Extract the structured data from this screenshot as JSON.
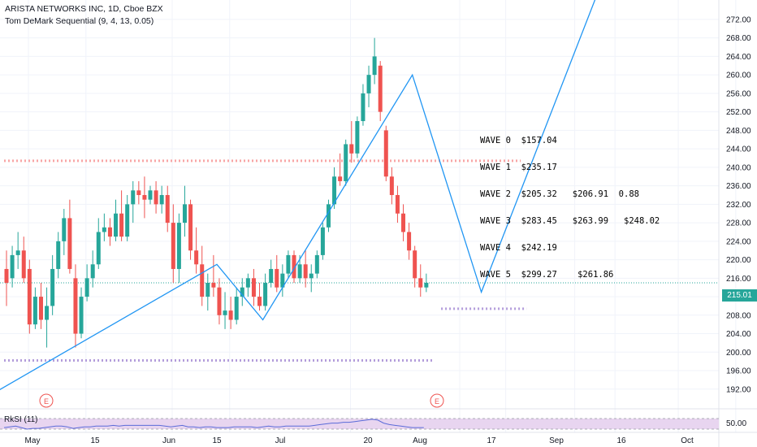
{
  "header": {
    "symbol_line": "ARISTA NETWORKS INC, 1D, Cboe BZX",
    "indicator_line": "Tom DeMark Sequential (9, 4, 13, 0.05)"
  },
  "waves": [
    "WAVE 0  $157.04",
    "WAVE 1  $235.17",
    "WAVE 2  $205.32   $206.91  0.88",
    "WAVE 3  $283.45   $263.99   $248.02",
    "WAVE 4  $242.19",
    "WAVE 5  $299.27    $261.86"
  ],
  "current_price": "215.01",
  "rsi_label": "RkSI (11)",
  "rsi_tick": "50.00",
  "earnings_marker": "E",
  "colors": {
    "up": "#26a69a",
    "down": "#ef5350",
    "wave_line": "#2196f3",
    "level_pink": "#f8a5a5",
    "level_purple": "#b39ddb",
    "rsi_fill": "#e8d5f0",
    "rsi_line": "#5b6bd8"
  },
  "chart_data": {
    "type": "candlestick",
    "title": "ARISTA NETWORKS INC, 1D, Cboe BZX",
    "y_ticks": [
      192,
      196,
      200,
      204,
      208,
      212,
      216,
      220,
      224,
      228,
      232,
      236,
      240,
      244,
      248,
      252,
      256,
      260,
      264,
      268,
      272
    ],
    "ylim": [
      189.5,
      274.8
    ],
    "x_ticks": [
      "May",
      "15",
      "Jun",
      "15",
      "Jul",
      "20",
      "Aug",
      "17",
      "Sep",
      "16",
      "Oct"
    ],
    "x_tick_days": [
      0,
      10,
      25,
      35,
      56,
      75,
      83,
      95,
      102,
      113,
      123
    ],
    "levels": [
      {
        "price": 241.4,
        "from_day": 0,
        "to_day": 89,
        "color": "pink"
      },
      {
        "price": 198.2,
        "from_day": 0,
        "to_day": 74,
        "color": "purple"
      },
      {
        "price": 209.4,
        "from_day": 76,
        "to_day": 90,
        "color": "purple"
      }
    ],
    "candles": [
      {
        "d": 0,
        "o": 218,
        "h": 222,
        "l": 210,
        "c": 215
      },
      {
        "d": 1,
        "o": 216,
        "h": 223,
        "l": 214,
        "c": 221
      },
      {
        "d": 2,
        "o": 221,
        "h": 226,
        "l": 218,
        "c": 222
      },
      {
        "d": 3,
        "o": 222,
        "h": 225,
        "l": 215,
        "c": 216
      },
      {
        "d": 4,
        "o": 218,
        "h": 220,
        "l": 204,
        "c": 206
      },
      {
        "d": 5,
        "o": 206,
        "h": 214,
        "l": 205,
        "c": 212
      },
      {
        "d": 6,
        "o": 212,
        "h": 215,
        "l": 205,
        "c": 207
      },
      {
        "d": 7,
        "o": 207,
        "h": 214,
        "l": 201,
        "c": 210
      },
      {
        "d": 8,
        "o": 210,
        "h": 221,
        "l": 208,
        "c": 218
      },
      {
        "d": 9,
        "o": 218,
        "h": 226,
        "l": 216,
        "c": 224
      },
      {
        "d": 10,
        "o": 224,
        "h": 231,
        "l": 221,
        "c": 229
      },
      {
        "d": 11,
        "o": 229,
        "h": 233,
        "l": 217,
        "c": 218
      },
      {
        "d": 12,
        "o": 216,
        "h": 219,
        "l": 201,
        "c": 204
      },
      {
        "d": 13,
        "o": 204,
        "h": 214,
        "l": 203,
        "c": 212
      },
      {
        "d": 14,
        "o": 212,
        "h": 219,
        "l": 211,
        "c": 216
      },
      {
        "d": 15,
        "o": 216,
        "h": 222,
        "l": 214,
        "c": 219
      },
      {
        "d": 16,
        "o": 219,
        "h": 229,
        "l": 218,
        "c": 226
      },
      {
        "d": 17,
        "o": 226,
        "h": 230,
        "l": 224,
        "c": 227
      },
      {
        "d": 18,
        "o": 227,
        "h": 229,
        "l": 223,
        "c": 225
      },
      {
        "d": 19,
        "o": 225,
        "h": 233,
        "l": 224,
        "c": 230
      },
      {
        "d": 20,
        "o": 230,
        "h": 235,
        "l": 224,
        "c": 225
      },
      {
        "d": 21,
        "o": 225,
        "h": 234,
        "l": 224,
        "c": 232
      },
      {
        "d": 22,
        "o": 232,
        "h": 237,
        "l": 228,
        "c": 235
      },
      {
        "d": 23,
        "o": 235,
        "h": 237,
        "l": 232,
        "c": 234
      },
      {
        "d": 24,
        "o": 234,
        "h": 238,
        "l": 229,
        "c": 233
      },
      {
        "d": 25,
        "o": 233,
        "h": 236,
        "l": 232,
        "c": 235
      },
      {
        "d": 26,
        "o": 235,
        "h": 237,
        "l": 230,
        "c": 232
      },
      {
        "d": 27,
        "o": 232,
        "h": 236,
        "l": 230,
        "c": 234
      },
      {
        "d": 28,
        "o": 234,
        "h": 236,
        "l": 226,
        "c": 228
      },
      {
        "d": 29,
        "o": 228,
        "h": 232,
        "l": 215,
        "c": 218
      },
      {
        "d": 30,
        "o": 218,
        "h": 230,
        "l": 215,
        "c": 228
      },
      {
        "d": 31,
        "o": 228,
        "h": 236,
        "l": 225,
        "c": 232
      },
      {
        "d": 32,
        "o": 232,
        "h": 233,
        "l": 220,
        "c": 222
      },
      {
        "d": 33,
        "o": 222,
        "h": 227,
        "l": 217,
        "c": 219
      },
      {
        "d": 34,
        "o": 219,
        "h": 223,
        "l": 210,
        "c": 212
      },
      {
        "d": 35,
        "o": 212,
        "h": 217,
        "l": 209,
        "c": 215
      },
      {
        "d": 36,
        "o": 215,
        "h": 221,
        "l": 212,
        "c": 214
      },
      {
        "d": 37,
        "o": 214,
        "h": 216,
        "l": 206,
        "c": 208
      },
      {
        "d": 38,
        "o": 208,
        "h": 213,
        "l": 205,
        "c": 209
      },
      {
        "d": 39,
        "o": 209,
        "h": 212,
        "l": 205,
        "c": 207
      },
      {
        "d": 40,
        "o": 207,
        "h": 214,
        "l": 206,
        "c": 212
      },
      {
        "d": 41,
        "o": 212,
        "h": 216,
        "l": 210,
        "c": 214
      },
      {
        "d": 42,
        "o": 214,
        "h": 217,
        "l": 212,
        "c": 216
      },
      {
        "d": 43,
        "o": 216,
        "h": 218,
        "l": 210,
        "c": 212
      },
      {
        "d": 44,
        "o": 212,
        "h": 215,
        "l": 209,
        "c": 210
      },
      {
        "d": 45,
        "o": 210,
        "h": 217,
        "l": 209,
        "c": 215
      },
      {
        "d": 46,
        "o": 215,
        "h": 220,
        "l": 214,
        "c": 218
      },
      {
        "d": 47,
        "o": 218,
        "h": 221,
        "l": 213,
        "c": 214
      },
      {
        "d": 48,
        "o": 214,
        "h": 219,
        "l": 212,
        "c": 217
      },
      {
        "d": 49,
        "o": 217,
        "h": 222,
        "l": 216,
        "c": 221
      },
      {
        "d": 50,
        "o": 221,
        "h": 222,
        "l": 215,
        "c": 216
      },
      {
        "d": 51,
        "o": 216,
        "h": 221,
        "l": 215,
        "c": 219
      },
      {
        "d": 52,
        "o": 219,
        "h": 222,
        "l": 214,
        "c": 216
      },
      {
        "d": 53,
        "o": 216,
        "h": 219,
        "l": 213,
        "c": 217
      },
      {
        "d": 54,
        "o": 217,
        "h": 222,
        "l": 216,
        "c": 221
      },
      {
        "d": 55,
        "o": 221,
        "h": 228,
        "l": 220,
        "c": 227
      },
      {
        "d": 56,
        "o": 227,
        "h": 233,
        "l": 226,
        "c": 232
      },
      {
        "d": 57,
        "o": 232,
        "h": 240,
        "l": 231,
        "c": 238
      },
      {
        "d": 58,
        "o": 238,
        "h": 243,
        "l": 236,
        "c": 237
      },
      {
        "d": 59,
        "o": 237,
        "h": 246,
        "l": 236,
        "c": 245
      },
      {
        "d": 60,
        "o": 245,
        "h": 250,
        "l": 241,
        "c": 243
      },
      {
        "d": 61,
        "o": 243,
        "h": 251,
        "l": 242,
        "c": 250
      },
      {
        "d": 62,
        "o": 250,
        "h": 258,
        "l": 249,
        "c": 256
      },
      {
        "d": 63,
        "o": 256,
        "h": 262,
        "l": 253,
        "c": 260
      },
      {
        "d": 64,
        "o": 260,
        "h": 268,
        "l": 258,
        "c": 264
      },
      {
        "d": 65,
        "o": 262,
        "h": 263,
        "l": 250,
        "c": 252
      },
      {
        "d": 66,
        "o": 248,
        "h": 249,
        "l": 237,
        "c": 238
      },
      {
        "d": 67,
        "o": 238,
        "h": 240,
        "l": 232,
        "c": 234
      },
      {
        "d": 68,
        "o": 234,
        "h": 236,
        "l": 228,
        "c": 230
      },
      {
        "d": 69,
        "o": 230,
        "h": 232,
        "l": 224,
        "c": 226
      },
      {
        "d": 70,
        "o": 226,
        "h": 228,
        "l": 220,
        "c": 222
      },
      {
        "d": 71,
        "o": 222,
        "h": 223,
        "l": 214,
        "c": 216
      },
      {
        "d": 72,
        "o": 216,
        "h": 219,
        "l": 212,
        "c": 214
      },
      {
        "d": 73,
        "o": 214,
        "h": 217,
        "l": 213,
        "c": 215
      }
    ],
    "wave_path": [
      {
        "d": -2,
        "p": 191
      },
      {
        "d": 37,
        "p": 219
      },
      {
        "d": 45,
        "p": 207
      },
      {
        "d": 71,
        "p": 260
      },
      {
        "d": 83,
        "p": 213
      },
      {
        "d": 103,
        "p": 277
      }
    ],
    "wave_labels": [
      "WAVE 0  $157.04",
      "WAVE 1  $235.17",
      "WAVE 2  $205.32   $206.91  0.88",
      "WAVE 3  $283.45   $263.99   $248.02",
      "WAVE 4  $242.19",
      "WAVE 5  $299.27    $261.86"
    ],
    "rsi": {
      "label": "RkSI (11)",
      "tick": 50.0,
      "values": [
        50,
        51,
        52,
        50,
        48,
        49,
        49,
        50,
        51,
        52,
        52,
        51,
        49,
        50,
        51,
        51,
        52,
        52,
        52,
        53,
        52,
        53,
        53,
        53,
        53,
        53,
        53,
        53,
        52,
        51,
        52,
        53,
        51,
        51,
        50,
        51,
        51,
        50,
        50,
        50,
        51,
        51,
        51,
        51,
        50,
        51,
        52,
        51,
        51,
        52,
        52,
        52,
        52,
        52,
        53,
        54,
        55,
        56,
        56,
        57,
        57,
        58,
        59,
        60,
        61,
        60,
        56,
        54,
        53,
        52,
        51,
        50,
        50,
        50
      ]
    },
    "x_origin_day_offset": 0
  }
}
